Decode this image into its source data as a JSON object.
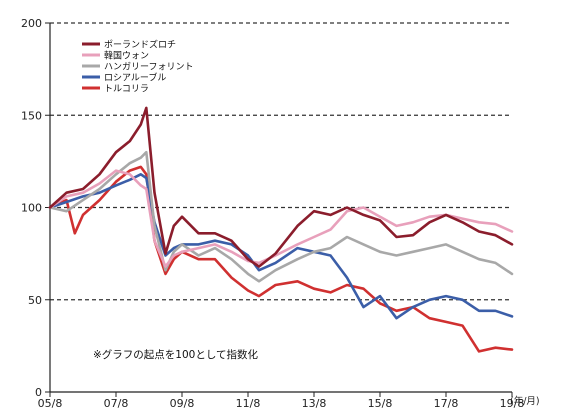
{
  "chart_data": {
    "type": "line",
    "title": "",
    "xlabel": "",
    "ylabel": "",
    "x_unit_label": "(年/月)",
    "x_range": [
      "2005-08",
      "2019-08"
    ],
    "x_ticks": [
      "05/8",
      "07/8",
      "09/8",
      "11/8",
      "13/8",
      "15/8",
      "17/8",
      "19/8"
    ],
    "ylim": [
      0,
      200
    ],
    "y_ticks": [
      "0",
      "50",
      "100",
      "150",
      "200"
    ],
    "grid": "dashed horizontal at 50, 100, 150, 200",
    "legend_position": "top-left",
    "note": "※グラフの起点を100として指数化",
    "series": [
      {
        "name": "ポーランドズロチ",
        "color": "#8b1d2c",
        "x": [
          "2005-08",
          "2006-02",
          "2006-08",
          "2007-02",
          "2007-08",
          "2008-01",
          "2008-05",
          "2008-07",
          "2008-10",
          "2009-02",
          "2009-05",
          "2009-08",
          "2010-02",
          "2010-08",
          "2011-02",
          "2011-08",
          "2011-12",
          "2012-06",
          "2013-02",
          "2013-08",
          "2014-02",
          "2014-08",
          "2015-02",
          "2015-08",
          "2016-02",
          "2016-08",
          "2017-02",
          "2017-08",
          "2018-02",
          "2018-08",
          "2019-02",
          "2019-08"
        ],
        "values": [
          100,
          108,
          110,
          118,
          130,
          136,
          145,
          154,
          108,
          75,
          90,
          95,
          86,
          86,
          82,
          72,
          68,
          75,
          90,
          98,
          96,
          100,
          96,
          93,
          84,
          85,
          92,
          96,
          92,
          87,
          85,
          80
        ]
      },
      {
        "name": "韓国ウォン",
        "color": "#e8a0bb",
        "x": [
          "2005-08",
          "2006-02",
          "2006-08",
          "2007-02",
          "2007-08",
          "2008-01",
          "2008-05",
          "2008-07",
          "2008-10",
          "2009-02",
          "2009-05",
          "2009-08",
          "2010-02",
          "2010-08",
          "2011-02",
          "2011-08",
          "2011-12",
          "2012-06",
          "2013-02",
          "2013-08",
          "2014-02",
          "2014-08",
          "2015-02",
          "2015-08",
          "2016-02",
          "2016-08",
          "2017-02",
          "2017-08",
          "2018-02",
          "2018-08",
          "2019-02",
          "2019-08"
        ],
        "values": [
          100,
          106,
          108,
          113,
          120,
          118,
          112,
          110,
          82,
          68,
          74,
          76,
          78,
          80,
          76,
          71,
          70,
          74,
          80,
          84,
          88,
          98,
          100,
          95,
          90,
          92,
          95,
          96,
          94,
          92,
          91,
          87
        ]
      },
      {
        "name": "ハンガリーフォリント",
        "color": "#a8a8a8",
        "x": [
          "2005-08",
          "2006-02",
          "2006-08",
          "2007-02",
          "2007-08",
          "2008-01",
          "2008-05",
          "2008-07",
          "2008-10",
          "2009-02",
          "2009-05",
          "2009-08",
          "2010-02",
          "2010-08",
          "2011-02",
          "2011-08",
          "2011-12",
          "2012-06",
          "2013-02",
          "2013-08",
          "2014-02",
          "2014-08",
          "2015-02",
          "2015-08",
          "2016-02",
          "2016-08",
          "2017-02",
          "2017-08",
          "2018-02",
          "2018-08",
          "2019-02",
          "2019-08"
        ],
        "values": [
          100,
          98,
          104,
          110,
          118,
          124,
          127,
          130,
          90,
          66,
          76,
          80,
          74,
          78,
          72,
          64,
          60,
          66,
          72,
          76,
          78,
          84,
          80,
          76,
          74,
          76,
          78,
          80,
          76,
          72,
          70,
          64
        ]
      },
      {
        "name": "ロシアルーブル",
        "color": "#3b5ea8",
        "x": [
          "2005-08",
          "2006-02",
          "2006-08",
          "2007-02",
          "2007-08",
          "2008-01",
          "2008-05",
          "2008-07",
          "2008-10",
          "2009-02",
          "2009-05",
          "2009-08",
          "2010-02",
          "2010-08",
          "2011-02",
          "2011-08",
          "2011-12",
          "2012-06",
          "2013-02",
          "2013-08",
          "2014-02",
          "2014-08",
          "2015-02",
          "2015-08",
          "2016-02",
          "2016-08",
          "2017-02",
          "2017-08",
          "2018-02",
          "2018-08",
          "2019-02",
          "2019-08"
        ],
        "values": [
          100,
          103,
          106,
          108,
          112,
          115,
          118,
          116,
          92,
          74,
          78,
          80,
          80,
          82,
          80,
          74,
          66,
          70,
          78,
          76,
          74,
          62,
          46,
          52,
          40,
          46,
          50,
          52,
          50,
          44,
          44,
          41
        ]
      },
      {
        "name": "トルコリラ",
        "color": "#d03030",
        "x": [
          "2005-08",
          "2006-02",
          "2006-05",
          "2006-08",
          "2007-02",
          "2007-08",
          "2008-01",
          "2008-05",
          "2008-07",
          "2008-10",
          "2009-02",
          "2009-05",
          "2009-08",
          "2010-02",
          "2010-08",
          "2011-02",
          "2011-08",
          "2011-12",
          "2012-06",
          "2013-02",
          "2013-08",
          "2014-02",
          "2014-08",
          "2015-02",
          "2015-08",
          "2016-02",
          "2016-08",
          "2017-02",
          "2017-08",
          "2018-02",
          "2018-08",
          "2019-02",
          "2019-08"
        ],
        "values": [
          100,
          104,
          86,
          96,
          104,
          114,
          120,
          122,
          118,
          82,
          64,
          72,
          76,
          72,
          72,
          62,
          55,
          52,
          58,
          60,
          56,
          54,
          58,
          56,
          48,
          44,
          46,
          40,
          38,
          36,
          22,
          24,
          23
        ]
      }
    ]
  }
}
